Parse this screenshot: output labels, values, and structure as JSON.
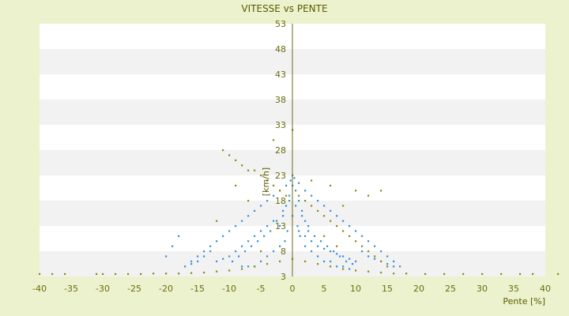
{
  "chart_data": {
    "type": "scatter",
    "title": "VITESSE vs PENTE",
    "xlabel": "Pente [%]",
    "ylabel": "[km/h]",
    "xlim": [
      -40,
      40
    ],
    "ylim": [
      3,
      53
    ],
    "x_ticks": [
      -40,
      -35,
      -30,
      -25,
      -20,
      -15,
      -10,
      -5,
      0,
      5,
      10,
      15,
      20,
      25,
      30,
      35,
      40
    ],
    "y_ticks": [
      3,
      8,
      13,
      18,
      23,
      28,
      33,
      38,
      43,
      48,
      53
    ],
    "grid": "horizontal bands",
    "colors": {
      "background": "#ecf2cd",
      "plot_band_light": "#ffffff",
      "plot_band_dark": "#f2f2f2",
      "axis": "#6b6b10",
      "series_blue": "#3a8fd6",
      "series_olive": "#8a8a12"
    },
    "series": [
      {
        "color": "#3a8fd6",
        "points": [
          [
            0,
            21
          ],
          [
            0.5,
            20
          ],
          [
            -0.5,
            19
          ],
          [
            1,
            18
          ],
          [
            -1,
            17
          ],
          [
            1.5,
            16
          ],
          [
            -1.5,
            15
          ],
          [
            2,
            14
          ],
          [
            -2,
            13
          ],
          [
            2.5,
            12
          ],
          [
            0,
            15
          ],
          [
            0.8,
            13
          ],
          [
            -0.8,
            12
          ],
          [
            1.2,
            11
          ],
          [
            -1.2,
            10
          ],
          [
            2,
            9
          ],
          [
            -2,
            9
          ],
          [
            3,
            8
          ],
          [
            -3,
            8
          ],
          [
            4,
            7
          ],
          [
            -4,
            7
          ],
          [
            5,
            6
          ],
          [
            -5,
            6
          ],
          [
            6,
            6
          ],
          [
            -6,
            5
          ],
          [
            7,
            5
          ],
          [
            -7,
            5
          ],
          [
            8,
            5
          ],
          [
            -8,
            5
          ],
          [
            9,
            4.5
          ],
          [
            0,
            23
          ],
          [
            0.3,
            22.5
          ],
          [
            -0.3,
            22
          ],
          [
            1,
            21.5
          ],
          [
            -1,
            21
          ],
          [
            2,
            20
          ],
          [
            -2,
            20
          ],
          [
            3,
            19
          ],
          [
            -3,
            19
          ],
          [
            4,
            18
          ],
          [
            -4,
            18
          ],
          [
            5,
            17
          ],
          [
            -5,
            17
          ],
          [
            6,
            16
          ],
          [
            -6,
            16
          ],
          [
            7,
            15
          ],
          [
            -7,
            15
          ],
          [
            8,
            14
          ],
          [
            -8,
            14
          ],
          [
            9,
            13
          ],
          [
            -9,
            13
          ],
          [
            10,
            12
          ],
          [
            -10,
            12
          ],
          [
            11,
            11
          ],
          [
            -11,
            11
          ],
          [
            12,
            10
          ],
          [
            -12,
            10
          ],
          [
            13,
            9
          ],
          [
            -13,
            9
          ],
          [
            14,
            8
          ],
          [
            -14,
            8
          ],
          [
            15,
            7
          ],
          [
            -15,
            7
          ],
          [
            16,
            6
          ],
          [
            -16,
            6
          ],
          [
            17,
            5
          ],
          [
            -17,
            5
          ],
          [
            -18,
            11
          ],
          [
            -19,
            9
          ],
          [
            -20,
            7
          ],
          [
            1,
            12
          ],
          [
            2,
            11
          ],
          [
            3,
            10
          ],
          [
            4,
            9
          ],
          [
            5,
            8.5
          ],
          [
            6,
            8
          ],
          [
            7,
            7.5
          ],
          [
            8,
            7
          ],
          [
            9,
            6.5
          ],
          [
            10,
            6
          ],
          [
            -3,
            14
          ],
          [
            -4,
            13
          ],
          [
            -5,
            12
          ],
          [
            -6,
            11
          ],
          [
            -7,
            10
          ],
          [
            -8,
            9
          ],
          [
            -9,
            8
          ],
          [
            -10,
            7
          ],
          [
            -11,
            6.5
          ],
          [
            -12,
            6
          ],
          [
            0.5,
            17
          ],
          [
            1.5,
            15
          ],
          [
            2.5,
            13
          ],
          [
            3.5,
            11
          ],
          [
            4.5,
            10
          ],
          [
            5.5,
            9
          ],
          [
            6.5,
            8
          ],
          [
            7.5,
            7
          ],
          [
            8.5,
            6
          ],
          [
            9.5,
            5.5
          ],
          [
            -0.5,
            18
          ],
          [
            -1.5,
            16
          ],
          [
            -2.5,
            14
          ],
          [
            -3.5,
            12
          ],
          [
            -4.5,
            11
          ],
          [
            -5.5,
            10
          ],
          [
            -6.5,
            9
          ],
          [
            -7.5,
            8
          ],
          [
            -8.5,
            7
          ],
          [
            -9.5,
            6
          ],
          [
            11,
            8
          ],
          [
            12,
            7
          ],
          [
            13,
            6.5
          ],
          [
            14,
            6
          ],
          [
            15,
            5.5
          ],
          [
            16,
            5
          ],
          [
            -13,
            8
          ],
          [
            -14,
            7
          ],
          [
            -15,
            6
          ],
          [
            -16,
            5.5
          ]
        ]
      },
      {
        "color": "#8a8a12",
        "points": [
          [
            -40,
            3.5
          ],
          [
            -38,
            3.5
          ],
          [
            -36,
            3.5
          ],
          [
            -31,
            3.5
          ],
          [
            -30,
            3.5
          ],
          [
            -28,
            3.5
          ],
          [
            -26,
            3.5
          ],
          [
            -24,
            3.5
          ],
          [
            -22,
            3.6
          ],
          [
            -20,
            3.6
          ],
          [
            -18,
            3.6
          ],
          [
            -16,
            3.7
          ],
          [
            -14,
            3.8
          ],
          [
            -12,
            4
          ],
          [
            -10,
            4.2
          ],
          [
            -8,
            4.5
          ],
          [
            -6,
            5
          ],
          [
            -4,
            5.5
          ],
          [
            -2,
            6
          ],
          [
            0,
            6.5
          ],
          [
            2,
            6
          ],
          [
            4,
            5.5
          ],
          [
            6,
            5
          ],
          [
            8,
            4.5
          ],
          [
            10,
            4.2
          ],
          [
            12,
            4
          ],
          [
            14,
            3.8
          ],
          [
            16,
            3.6
          ],
          [
            18,
            3.6
          ],
          [
            21,
            3.5
          ],
          [
            24,
            3.5
          ],
          [
            27,
            3.5
          ],
          [
            30,
            3.5
          ],
          [
            33,
            3.5
          ],
          [
            36,
            3.5
          ],
          [
            38,
            3.5
          ],
          [
            42,
            3.5
          ],
          [
            -11,
            28
          ],
          [
            -10,
            27
          ],
          [
            -9,
            26
          ],
          [
            -8,
            25
          ],
          [
            -7,
            24
          ],
          [
            -6,
            24
          ],
          [
            -5,
            23
          ],
          [
            -4,
            22
          ],
          [
            -3,
            21
          ],
          [
            -2,
            20
          ],
          [
            -1,
            19
          ],
          [
            1,
            19
          ],
          [
            2,
            18
          ],
          [
            3,
            17
          ],
          [
            4,
            16
          ],
          [
            5,
            15
          ],
          [
            6,
            14
          ],
          [
            7,
            13
          ],
          [
            8,
            12
          ],
          [
            9,
            11
          ],
          [
            10,
            10
          ],
          [
            11,
            9
          ],
          [
            12,
            8
          ],
          [
            13,
            7
          ],
          [
            14,
            6
          ],
          [
            15,
            5
          ],
          [
            0,
            32
          ],
          [
            -3,
            30
          ],
          [
            3,
            22
          ],
          [
            6,
            21
          ],
          [
            10,
            20
          ],
          [
            12,
            19
          ],
          [
            14,
            20
          ],
          [
            8,
            17
          ],
          [
            -7,
            18
          ],
          [
            -9,
            21
          ],
          [
            5,
            11
          ],
          [
            -5,
            8
          ],
          [
            7,
            9
          ],
          [
            -12,
            14
          ]
        ]
      }
    ]
  }
}
